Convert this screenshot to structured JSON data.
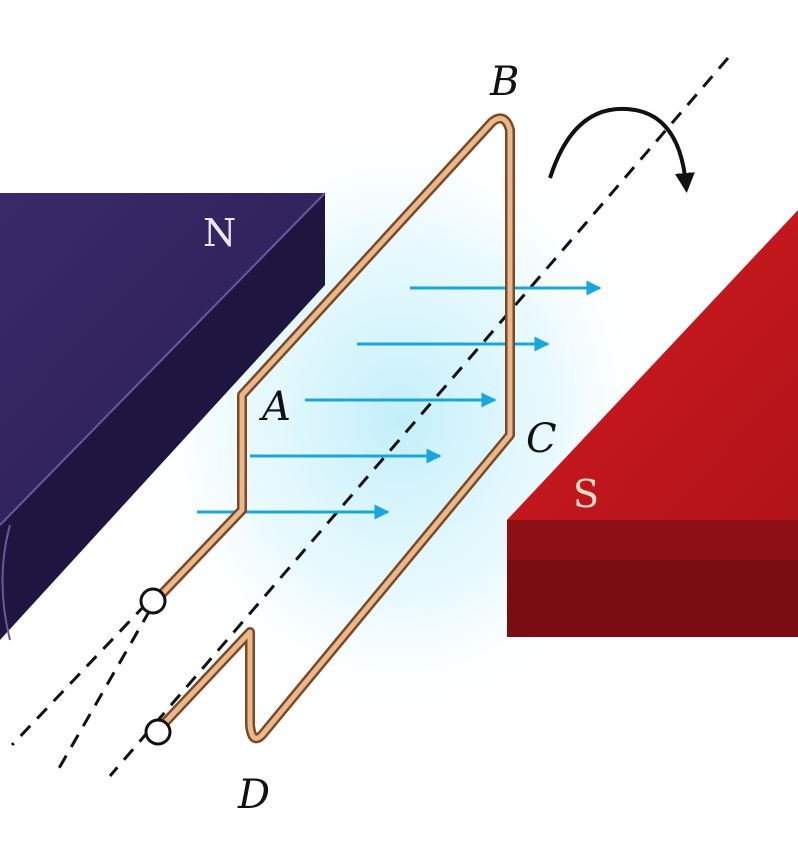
{
  "magnets": {
    "north": {
      "label": "N",
      "color": "#2a1d52"
    },
    "south": {
      "label": "S",
      "color": "#c8161d"
    }
  },
  "points": {
    "a": "A",
    "b": "B",
    "c": "C",
    "d": "D"
  },
  "field": {
    "arrow_color": "#1aa6dd",
    "arrow_count": 5
  },
  "coil": {
    "color": "#b57a4a",
    "terminals": 2
  },
  "rotation": {
    "direction": "clockwise",
    "axis_style": "dashed"
  }
}
